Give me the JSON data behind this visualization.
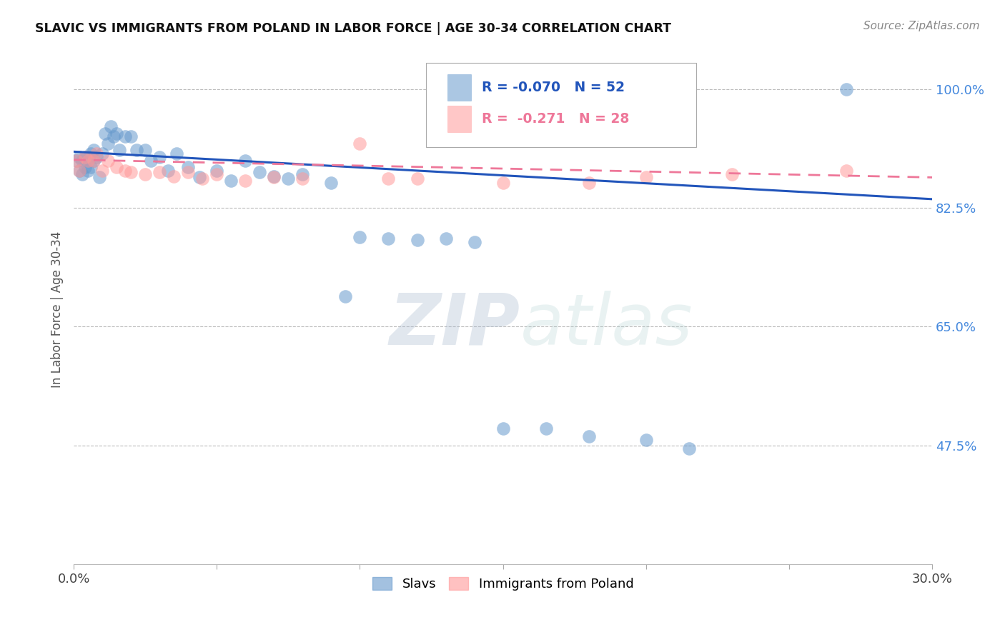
{
  "title": "SLAVIC VS IMMIGRANTS FROM POLAND IN LABOR FORCE | AGE 30-34 CORRELATION CHART",
  "source": "Source: ZipAtlas.com",
  "ylabel": "In Labor Force | Age 30-34",
  "xmin": 0.0,
  "xmax": 0.3,
  "ymin": 0.3,
  "ymax": 1.05,
  "ytick_pos": [
    0.475,
    0.65,
    0.825,
    1.0
  ],
  "ytick_labels": [
    "47.5%",
    "65.0%",
    "82.5%",
    "100.0%"
  ],
  "slavs_R": -0.07,
  "slavs_N": 52,
  "poland_R": -0.271,
  "poland_N": 28,
  "legend_slavs": "Slavs",
  "legend_poland": "Immigrants from Poland",
  "slavs_color": "#6699CC",
  "poland_color": "#FF9999",
  "line_blue": "#2255BB",
  "line_pink": "#EE7799",
  "watermark_color": "#C8D8EA",
  "background_color": "#FFFFFF",
  "grid_color": "#BBBBBB",
  "slavs_x": [
    0.001,
    0.002,
    0.002,
    0.003,
    0.003,
    0.004,
    0.004,
    0.005,
    0.005,
    0.006,
    0.006,
    0.007,
    0.007,
    0.008,
    0.009,
    0.01,
    0.011,
    0.012,
    0.013,
    0.014,
    0.015,
    0.016,
    0.018,
    0.02,
    0.022,
    0.025,
    0.027,
    0.03,
    0.033,
    0.036,
    0.04,
    0.044,
    0.05,
    0.055,
    0.06,
    0.065,
    0.07,
    0.075,
    0.08,
    0.09,
    0.095,
    0.1,
    0.11,
    0.12,
    0.13,
    0.14,
    0.15,
    0.165,
    0.18,
    0.2,
    0.215,
    0.27
  ],
  "slavs_y": [
    0.895,
    0.9,
    0.88,
    0.895,
    0.875,
    0.9,
    0.885,
    0.895,
    0.88,
    0.905,
    0.885,
    0.91,
    0.895,
    0.9,
    0.87,
    0.905,
    0.935,
    0.92,
    0.945,
    0.93,
    0.935,
    0.91,
    0.93,
    0.93,
    0.91,
    0.91,
    0.895,
    0.9,
    0.88,
    0.905,
    0.885,
    0.87,
    0.88,
    0.865,
    0.895,
    0.878,
    0.872,
    0.868,
    0.875,
    0.862,
    0.695,
    0.782,
    0.78,
    0.778,
    0.78,
    0.775,
    0.5,
    0.5,
    0.488,
    0.483,
    0.47,
    1.0
  ],
  "poland_x": [
    0.001,
    0.002,
    0.004,
    0.005,
    0.007,
    0.008,
    0.01,
    0.012,
    0.015,
    0.018,
    0.02,
    0.025,
    0.03,
    0.035,
    0.04,
    0.045,
    0.05,
    0.06,
    0.07,
    0.08,
    0.1,
    0.11,
    0.12,
    0.15,
    0.18,
    0.2,
    0.23,
    0.27
  ],
  "poland_y": [
    0.895,
    0.88,
    0.9,
    0.895,
    0.895,
    0.905,
    0.88,
    0.895,
    0.885,
    0.88,
    0.878,
    0.875,
    0.878,
    0.872,
    0.878,
    0.868,
    0.875,
    0.865,
    0.87,
    0.868,
    0.92,
    0.868,
    0.868,
    0.862,
    0.862,
    0.87,
    0.875,
    0.88
  ]
}
